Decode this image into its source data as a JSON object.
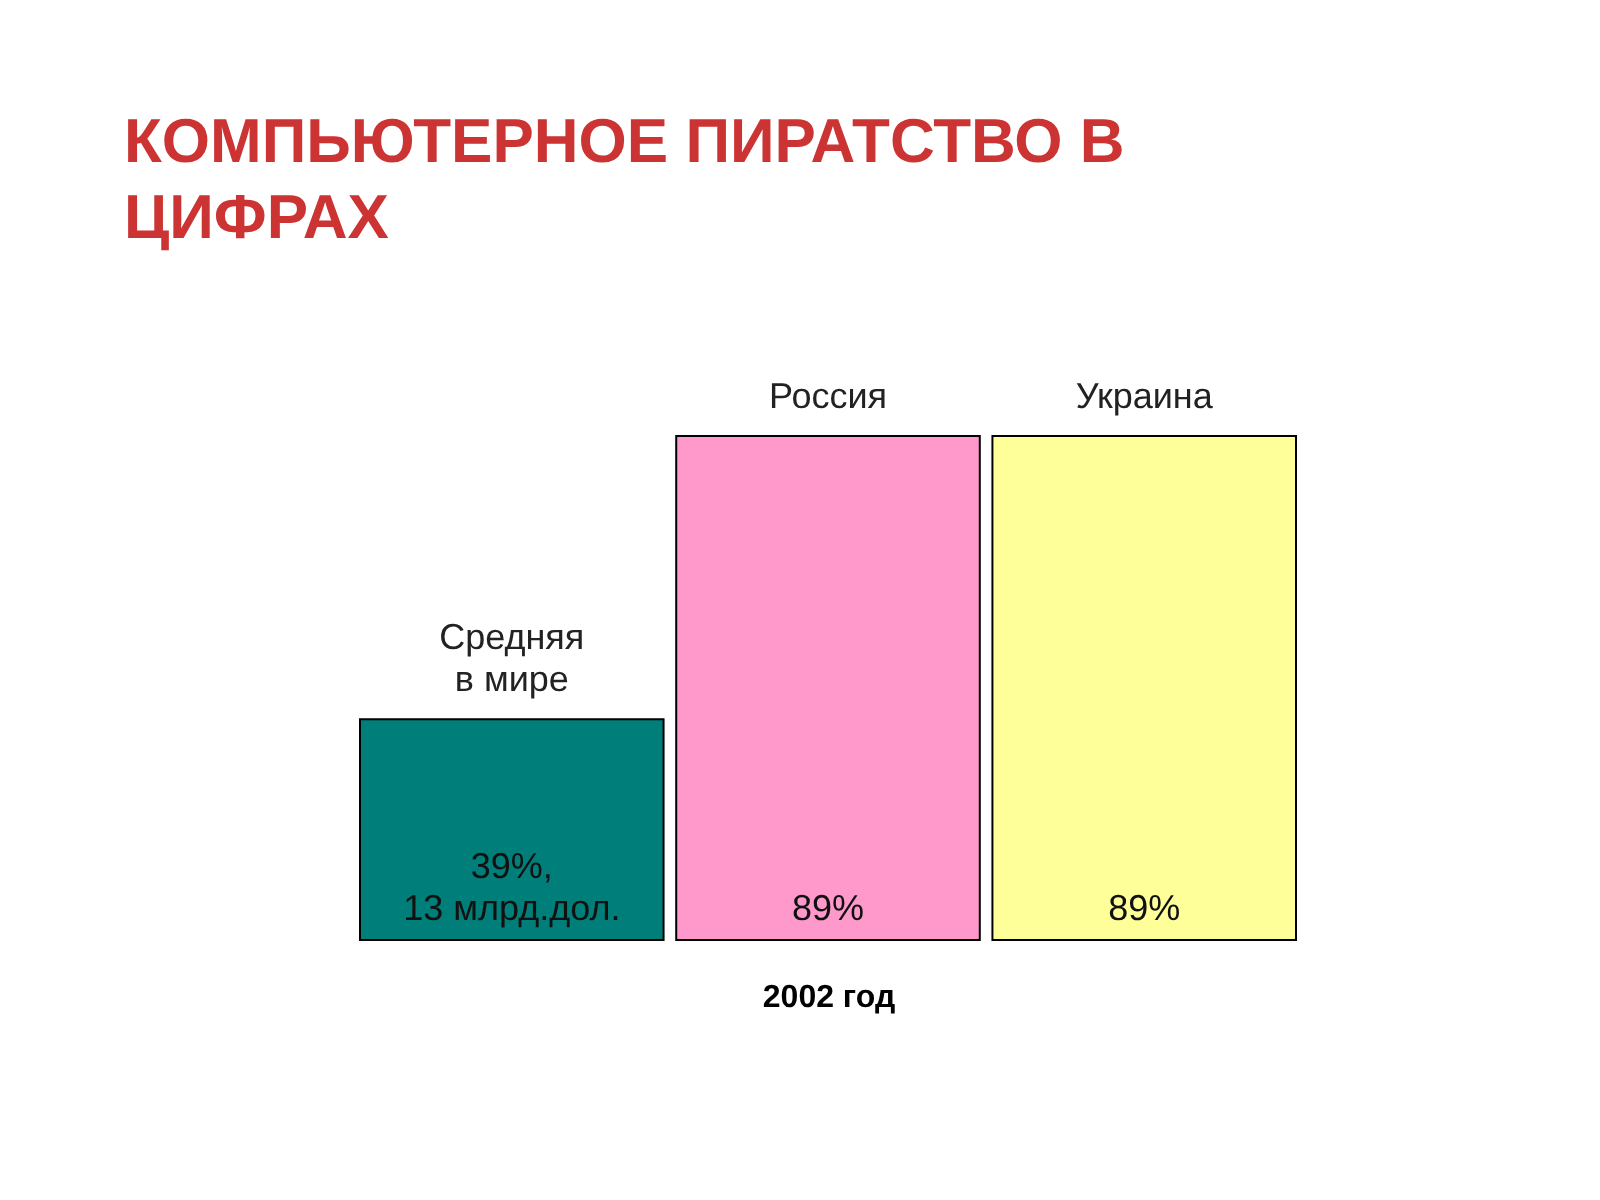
{
  "chart_data": {
    "type": "bar",
    "title": "КОМПЬЮТЕРНОЕ ПИРАТСТВО В ЦИФРАХ",
    "categories": [
      "Средняя\nв мире",
      "Россия",
      "Украина"
    ],
    "values": [
      39,
      89,
      89
    ],
    "colors": [
      "#007f7a",
      "#ff99cc",
      "#ffff99"
    ],
    "value_labels": [
      "39%,\n13 млрд.дол.",
      "89%",
      "89%"
    ],
    "xlabel": "2002 год"
  }
}
